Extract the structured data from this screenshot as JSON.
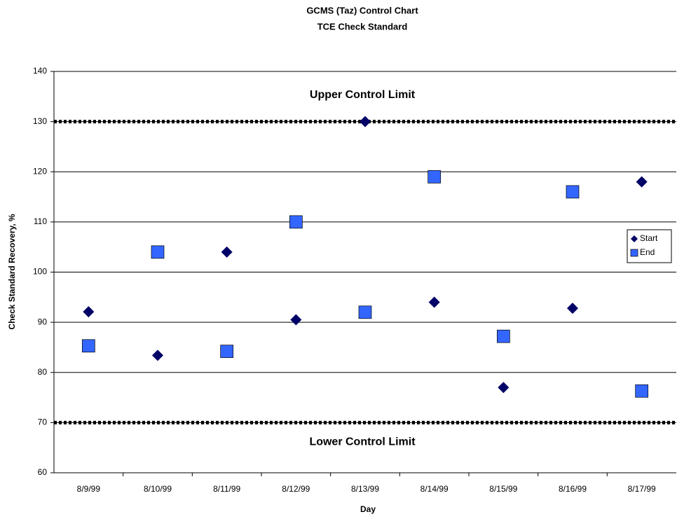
{
  "chart_data": {
    "type": "scatter",
    "title": "GCMS (Taz) Control Chart",
    "subtitle": "TCE Check Standard",
    "x_label": "Day",
    "y_label": "Check Standard Recovery, %",
    "categories": [
      "8/9/99",
      "8/10/99",
      "8/11/99",
      "8/12/99",
      "8/13/99",
      "8/14/99",
      "8/15/99",
      "8/16/99",
      "8/17/99"
    ],
    "series": [
      {
        "name": "Start",
        "color": "#000066",
        "marker": "diamond",
        "values": [
          92.1,
          83.4,
          104,
          90.5,
          130,
          94,
          77,
          92.8,
          118
        ]
      },
      {
        "name": "End",
        "color": "#3366ff",
        "marker": "square",
        "values": [
          85.3,
          104,
          84.2,
          110,
          92,
          119,
          87.2,
          116,
          76.3
        ]
      }
    ],
    "control_limits": [
      {
        "label": "Upper Control Limit",
        "value": 130
      },
      {
        "label": "Lower Control Limit",
        "value": 70
      }
    ],
    "ylim": [
      60,
      140
    ],
    "yticks": [
      60,
      70,
      80,
      90,
      100,
      110,
      120,
      130,
      140
    ],
    "grid": true,
    "legend": "right"
  }
}
